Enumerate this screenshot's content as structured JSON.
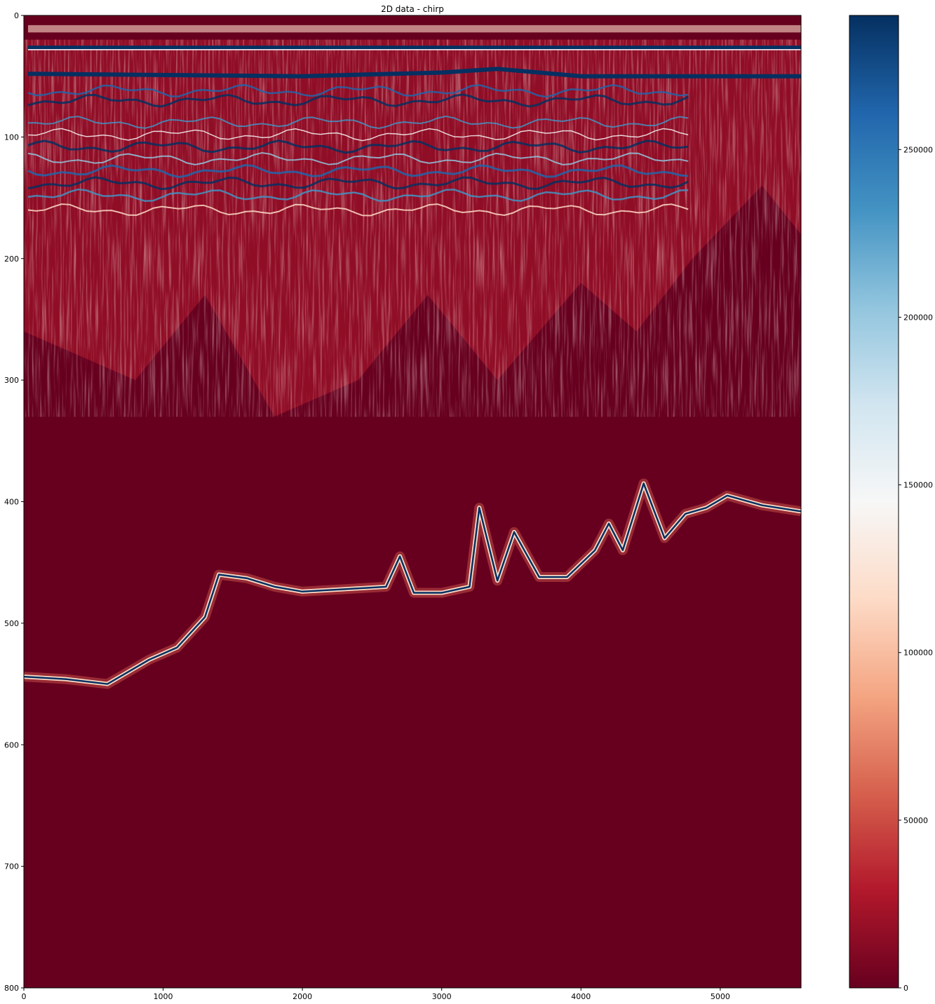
{
  "chart_data": {
    "type": "heatmap",
    "title": "2D data - chirp",
    "xlabel": "",
    "ylabel": "",
    "xlim": [
      0,
      5580
    ],
    "ylim": [
      800,
      0
    ],
    "y_inverted": true,
    "x_ticks": [
      0,
      1000,
      2000,
      3000,
      4000,
      5000
    ],
    "y_ticks": [
      0,
      100,
      200,
      300,
      400,
      500,
      600,
      700,
      800
    ],
    "colormap": "RdBu",
    "colorbar": {
      "min": 0,
      "max": 290000,
      "ticks": [
        0,
        50000,
        100000,
        150000,
        200000,
        250000
      ],
      "colors": [
        "#67001f",
        "#b2182b",
        "#d6604d",
        "#f4a582",
        "#fddbc7",
        "#f7f7f7",
        "#d1e5f0",
        "#92c5de",
        "#4393c3",
        "#2166ac",
        "#053061"
      ]
    },
    "features": {
      "direct_arrival_y": 26,
      "seafloor_reflector": [
        [
          30,
          48
        ],
        [
          1000,
          49
        ],
        [
          2000,
          50
        ],
        [
          3000,
          47
        ],
        [
          3400,
          44
        ],
        [
          4000,
          50
        ],
        [
          5000,
          50
        ],
        [
          5580,
          50
        ]
      ],
      "deep_reflector": [
        [
          0,
          544
        ],
        [
          300,
          546
        ],
        [
          600,
          550
        ],
        [
          900,
          530
        ],
        [
          1100,
          520
        ],
        [
          1300,
          495
        ],
        [
          1400,
          460
        ],
        [
          1600,
          463
        ],
        [
          1800,
          470
        ],
        [
          2000,
          474
        ],
        [
          2300,
          472
        ],
        [
          2600,
          470
        ],
        [
          2700,
          445
        ],
        [
          2800,
          475
        ],
        [
          3000,
          475
        ],
        [
          3200,
          470
        ],
        [
          3270,
          405
        ],
        [
          3400,
          465
        ],
        [
          3520,
          425
        ],
        [
          3700,
          462
        ],
        [
          3900,
          462
        ],
        [
          4100,
          440
        ],
        [
          4200,
          418
        ],
        [
          4300,
          440
        ],
        [
          4450,
          385
        ],
        [
          4600,
          430
        ],
        [
          4750,
          410
        ],
        [
          4900,
          405
        ],
        [
          5050,
          395
        ],
        [
          5300,
          403
        ],
        [
          5580,
          408
        ]
      ]
    }
  }
}
